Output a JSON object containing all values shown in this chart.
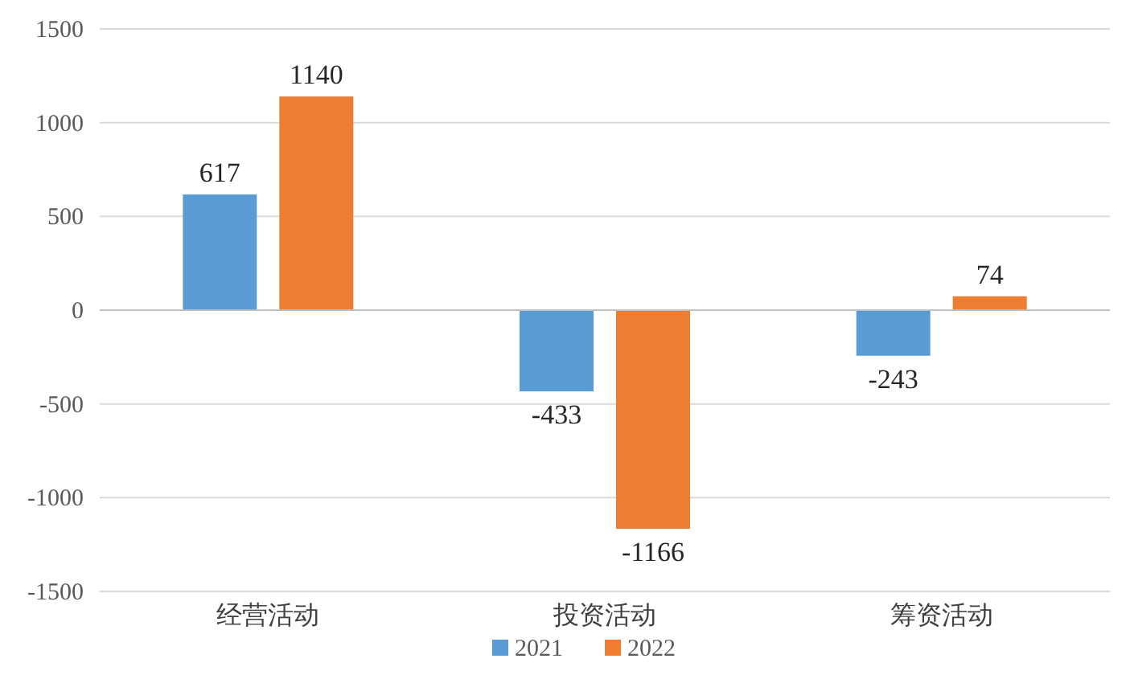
{
  "chart_data": {
    "type": "bar",
    "categories": [
      "经营活动",
      "投资活动",
      "筹资活动"
    ],
    "series": [
      {
        "name": "2021",
        "color": "#5b9bd5",
        "values": [
          617,
          -433,
          -243
        ]
      },
      {
        "name": "2022",
        "color": "#ed7d31",
        "values": [
          1140,
          -1166,
          74
        ]
      }
    ],
    "ylim": [
      -1500,
      1500
    ],
    "yticks": [
      -1500,
      -1000,
      -500,
      0,
      500,
      1000,
      1500
    ],
    "grid": "y",
    "legend": "bottom",
    "data_labels": true
  }
}
